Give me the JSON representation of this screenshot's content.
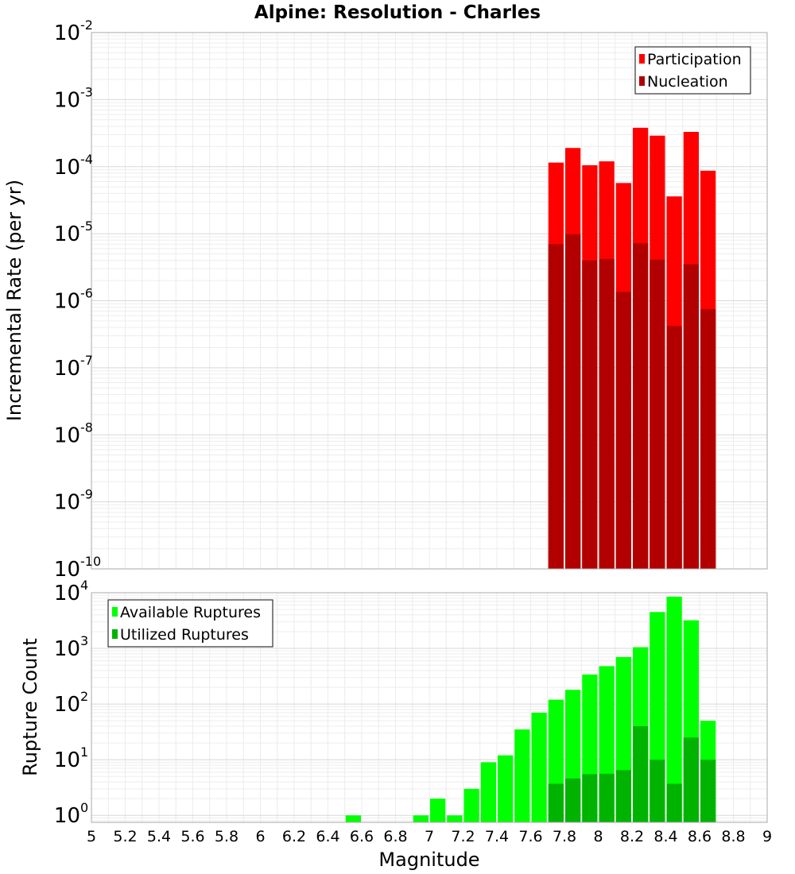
{
  "chart_data": [
    {
      "type": "bar",
      "title": "Alpine: Resolution - Charles",
      "xlabel": "",
      "ylabel": "Incremental Rate (per yr)",
      "xlim": [
        5,
        9
      ],
      "ylim": [
        1e-10,
        0.01
      ],
      "yscale": "log",
      "grid": true,
      "legend_position": "top-right",
      "bar_width": 0.1,
      "y_ticks": [
        {
          "mantissa": "10",
          "exponent": "-10"
        },
        {
          "mantissa": "10",
          "exponent": "-9"
        },
        {
          "mantissa": "10",
          "exponent": "-8"
        },
        {
          "mantissa": "10",
          "exponent": "-7"
        },
        {
          "mantissa": "10",
          "exponent": "-6"
        },
        {
          "mantissa": "10",
          "exponent": "-5"
        },
        {
          "mantissa": "10",
          "exponent": "-4"
        },
        {
          "mantissa": "10",
          "exponent": "-3"
        },
        {
          "mantissa": "10",
          "exponent": "-2"
        }
      ],
      "x": [
        7.75,
        7.85,
        7.95,
        8.05,
        8.15,
        8.25,
        8.35,
        8.45,
        8.55,
        8.65
      ],
      "series": [
        {
          "name": "Participation",
          "color": "#ff0000",
          "values": [
            0.000115,
            0.00019,
            0.000105,
            0.00012,
            5.7e-05,
            0.00038,
            0.00029,
            3.6e-05,
            0.00033,
            8.7e-05
          ]
        },
        {
          "name": "Nucleation",
          "color": "#b20000",
          "values": [
            7e-06,
            9.8e-06,
            4e-06,
            4.2e-06,
            1.35e-06,
            7.2e-06,
            4.1e-06,
            4.2e-07,
            3.5e-06,
            7.5e-07
          ]
        }
      ]
    },
    {
      "type": "bar",
      "title": "",
      "xlabel": "Magnitude",
      "ylabel": "Rupture Count",
      "xlim": [
        5,
        9
      ],
      "ylim": [
        0.75,
        10000
      ],
      "yscale": "log",
      "grid": true,
      "legend_position": "top-left",
      "bar_width": 0.1,
      "y_ticks": [
        {
          "mantissa": "10",
          "exponent": "0"
        },
        {
          "mantissa": "10",
          "exponent": "1"
        },
        {
          "mantissa": "10",
          "exponent": "2"
        },
        {
          "mantissa": "10",
          "exponent": "3"
        },
        {
          "mantissa": "10",
          "exponent": "4"
        }
      ],
      "x_tick_labels": [
        "5",
        "5.2",
        "5.4",
        "5.6",
        "5.8",
        "6",
        "6.2",
        "6.4",
        "6.6",
        "6.8",
        "7",
        "7.2",
        "7.4",
        "7.6",
        "7.8",
        "8",
        "8.2",
        "8.4",
        "8.6",
        "8.8",
        "9"
      ],
      "x": [
        6.55,
        6.95,
        7.05,
        7.15,
        7.25,
        7.35,
        7.45,
        7.55,
        7.65,
        7.75,
        7.85,
        7.95,
        8.05,
        8.15,
        8.25,
        8.35,
        8.45,
        8.55,
        8.65
      ],
      "series": [
        {
          "name": "Available Ruptures",
          "color": "#00ff00",
          "values": [
            1,
            1,
            2,
            1,
            3,
            9,
            12,
            35,
            70,
            120,
            180,
            340,
            480,
            700,
            1050,
            4500,
            8500,
            3200,
            50
          ]
        },
        {
          "name": "Utilized Ruptures",
          "color": "#00b300",
          "values": [
            0,
            0,
            0,
            0,
            0,
            0,
            0,
            0,
            0,
            3.7,
            4.6,
            5.5,
            5.6,
            6.5,
            40,
            10,
            3.7,
            25,
            10
          ]
        }
      ]
    }
  ]
}
